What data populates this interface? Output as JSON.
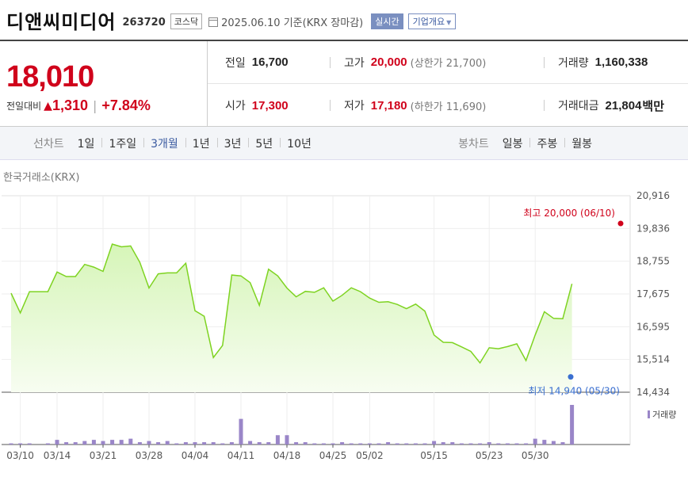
{
  "header": {
    "title": "디앤씨미디어",
    "code": "263720",
    "market": "코스닥",
    "date": "2025.06.10",
    "basis": "기준(KRX 장마감)",
    "realtime_label": "실시간",
    "company_label": "기업개요"
  },
  "quote": {
    "price": "18,010",
    "change_label": "전일대비",
    "change_amount": "1,310",
    "change_pct": "+7.84%",
    "prev_close_label": "전일",
    "prev_close": "16,700",
    "high_label": "고가",
    "high": "20,000",
    "upper_limit_label": "(상한가",
    "upper_limit": "21,700)",
    "volume_label": "거래량",
    "volume": "1,160,338",
    "open_label": "시가",
    "open": "17,300",
    "low_label": "저가",
    "low": "17,180",
    "lower_limit_label": "(하한가",
    "lower_limit": "11,690)",
    "amount_label": "거래대금",
    "amount": "21,804",
    "amount_unit": "백만"
  },
  "tabs": {
    "line_label": "선차트",
    "line_items": [
      "1일",
      "1주일",
      "3개월",
      "1년",
      "3년",
      "5년",
      "10년"
    ],
    "active": "3개월",
    "candle_label": "봉차트",
    "candle_items": [
      "일봉",
      "주봉",
      "월봉"
    ]
  },
  "chart_source": "한국거래소(KRX)",
  "colors": {
    "up": "#d0021b",
    "line": "#7ed321",
    "fill": "#eafbd9",
    "volume": "#9a86c8",
    "low_marker": "#3a6fd0"
  },
  "chart_data": {
    "type": "area",
    "y_ticks": [
      "20,916",
      "19,836",
      "18,755",
      "17,675",
      "16,595",
      "15,514",
      "14,434"
    ],
    "ylim": [
      14434,
      20916
    ],
    "x_tick_labels": [
      "03/10",
      "03/14",
      "03/21",
      "03/28",
      "04/04",
      "04/11",
      "04/18",
      "04/25",
      "05/02",
      "05/15",
      "05/23",
      "05/30"
    ],
    "x_tick_index": [
      1,
      5,
      10,
      15,
      20,
      25,
      30,
      35,
      39,
      46,
      52,
      57
    ],
    "high_annotation": "최고 20,000 (06/10)",
    "low_annotation": "최저 14,940 (05/30)",
    "volume_label": "거래량",
    "series": [
      {
        "values": [
          17700,
          17050,
          17750,
          17750,
          17750,
          18400,
          18250,
          18250,
          18650,
          18560,
          18420,
          19320,
          19230,
          19260,
          18720,
          17870,
          18340,
          18370,
          18370,
          18690,
          17120,
          16940,
          15580,
          15980,
          18300,
          18270,
          18050,
          17300,
          18490,
          18270,
          17870,
          17580,
          17760,
          17730,
          17880,
          17440,
          17630,
          17880,
          17750,
          17540,
          17400,
          17420,
          17330,
          17190,
          17340,
          17110,
          16320,
          16080,
          16070,
          15930,
          15780,
          15400,
          15900,
          15870,
          15940,
          16030,
          15480,
          16320,
          17090,
          16870,
          16860,
          18010
        ]
      },
      {
        "name": "거래량",
        "values": [
          1,
          1,
          1,
          0,
          1,
          4,
          2,
          2,
          3,
          4,
          3,
          4,
          4,
          5,
          2,
          3,
          2,
          3,
          1,
          2,
          2,
          2,
          2,
          1,
          2,
          22,
          3,
          2,
          2,
          8,
          8,
          2,
          2,
          1,
          1,
          1,
          2,
          1,
          1,
          1,
          1,
          2,
          1,
          1,
          1,
          1,
          3,
          2,
          2,
          1,
          1,
          1,
          2,
          1,
          1,
          1,
          1,
          5,
          4,
          3,
          2,
          34
        ]
      }
    ]
  }
}
